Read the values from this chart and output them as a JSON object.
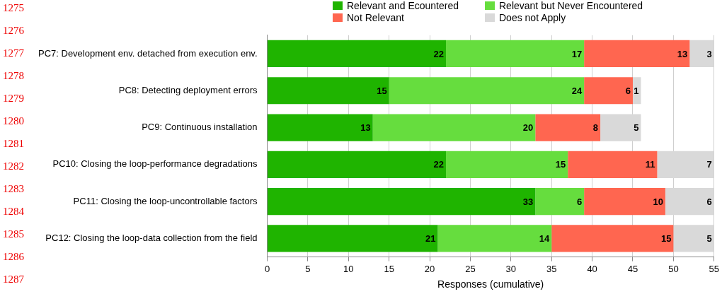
{
  "chart_data": {
    "type": "bar",
    "orientation": "horizontal",
    "stacked": true,
    "data_labels": true,
    "grid": "x",
    "legend": "top",
    "xlabel": "Responses (cumulative)",
    "categories": [
      "PC7: Development env. detached from execution env.",
      "PC8: Detecting deployment errors",
      "PC9: Continuous installation",
      "PC10: Closing the loop-performance degradations",
      "PC11: Closing the loop-uncontrollable factors",
      "PC12: Closing the loop-data collection from the field"
    ],
    "series": [
      {
        "name": "Relevant and Ecountered",
        "color": "#1fb400",
        "values": [
          22,
          15,
          13,
          22,
          33,
          21
        ]
      },
      {
        "name": "Relevant but Never Encountered",
        "color": "#66dd3e",
        "values": [
          17,
          24,
          20,
          15,
          6,
          14
        ]
      },
      {
        "name": "Not Relevant",
        "color": "#ff6650",
        "values": [
          13,
          6,
          8,
          11,
          10,
          15
        ]
      },
      {
        "name": "Does not Apply",
        "color": "#d9d9d9",
        "values": [
          3,
          1,
          5,
          7,
          6,
          5
        ]
      }
    ],
    "xlim": [
      0,
      55
    ],
    "xticks": [
      0,
      5,
      10,
      15,
      20,
      25,
      30,
      35,
      40,
      45,
      50,
      55
    ],
    "annotations": [
      "1275",
      "1276",
      "1277",
      "1278",
      "1279",
      "1280",
      "1281",
      "1282",
      "1283",
      "1284",
      "1285",
      "1286",
      "1287"
    ]
  }
}
